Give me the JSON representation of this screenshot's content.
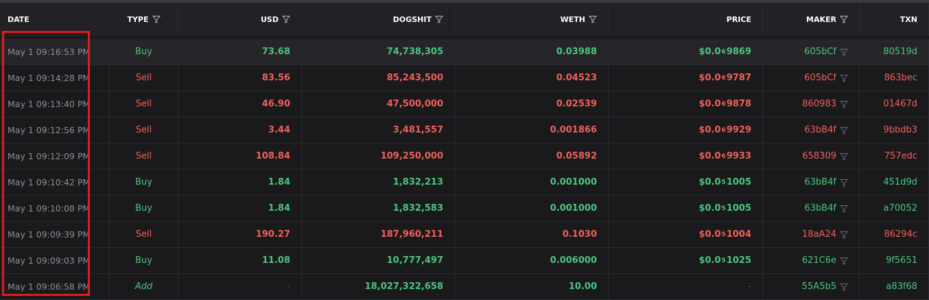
{
  "header": [
    {
      "label": "DATE",
      "filter": false
    },
    {
      "label": "TYPE",
      "filter": true
    },
    {
      "label": "USD",
      "filter": true
    },
    {
      "label": "DOGSHIT",
      "filter": true
    },
    {
      "label": "WETH",
      "filter": true
    },
    {
      "label": "PRICE",
      "filter": false
    },
    {
      "label": "MAKER",
      "filter": true
    },
    {
      "label": "TXN",
      "filter": false
    }
  ],
  "rows": [
    {
      "date": "May 1 09:16:53 PM",
      "type": "Buy",
      "usd": "73.68",
      "tokens": "74,738,305",
      "weth": "0.03988",
      "price": {
        "prefix": "$0.0",
        "zeros": "6",
        "digits": "9869"
      },
      "maker": "605bCf",
      "txn": "80519d",
      "color": "#4cc57e"
    },
    {
      "date": "May 1 09:14:28 PM",
      "type": "Sell",
      "usd": "83.56",
      "tokens": "85,243,500",
      "weth": "0.04523",
      "price": {
        "prefix": "$0.0",
        "zeros": "6",
        "digits": "9787"
      },
      "maker": "605bCf",
      "txn": "863bec",
      "color": "#f0605a"
    },
    {
      "date": "May 1 09:13:40 PM",
      "type": "Sell",
      "usd": "46.90",
      "tokens": "47,500,000",
      "weth": "0.02539",
      "price": {
        "prefix": "$0.0",
        "zeros": "6",
        "digits": "9878"
      },
      "maker": "860983",
      "txn": "01467d",
      "color": "#f0605a"
    },
    {
      "date": "May 1 09:12:56 PM",
      "type": "Sell",
      "usd": "3.44",
      "tokens": "3,481,557",
      "weth": "0.001866",
      "price": {
        "prefix": "$0.0",
        "zeros": "6",
        "digits": "9929"
      },
      "maker": "63bB4f",
      "txn": "9bbdb3",
      "color": "#f0605a"
    },
    {
      "date": "May 1 09:12:09 PM",
      "type": "Sell",
      "usd": "108.84",
      "tokens": "109,250,000",
      "weth": "0.05892",
      "price": {
        "prefix": "$0.0",
        "zeros": "6",
        "digits": "9933"
      },
      "maker": "658309",
      "txn": "757edc",
      "color": "#f0605a"
    },
    {
      "date": "May 1 09:10:42 PM",
      "type": "Buy",
      "usd": "1.84",
      "tokens": "1,832,213",
      "weth": "0.001000",
      "price": {
        "prefix": "$0.0",
        "zeros": "5",
        "digits": "1005"
      },
      "maker": "63bB4f",
      "txn": "451d9d",
      "color": "#4cc57e"
    },
    {
      "date": "May 1 09:10:08 PM",
      "type": "Buy",
      "usd": "1.84",
      "tokens": "1,832,583",
      "weth": "0.001000",
      "price": {
        "prefix": "$0.0",
        "zeros": "5",
        "digits": "1005"
      },
      "maker": "63bB4f",
      "txn": "a70052",
      "color": "#4cc57e"
    },
    {
      "date": "May 1 09:09:39 PM",
      "type": "Sell",
      "usd": "190.27",
      "tokens": "187,960,211",
      "weth": "0.1030",
      "price": {
        "prefix": "$0.0",
        "zeros": "5",
        "digits": "1004"
      },
      "maker": "18aA24",
      "txn": "86294c",
      "color": "#f0605a"
    },
    {
      "date": "May 1 09:09:03 PM",
      "type": "Buy",
      "usd": "11.08",
      "tokens": "10,777,497",
      "weth": "0.006000",
      "price": {
        "prefix": "$0.0",
        "zeros": "5",
        "digits": "1025"
      },
      "maker": "621C6e",
      "txn": "9f5651",
      "color": "#4cc57e"
    },
    {
      "date": "May 1 09:06:58 PM",
      "type": "Add",
      "usd": "-",
      "tokens": "18,027,322,658",
      "weth": "10.00",
      "price": "-",
      "maker": "55A5b5",
      "txn": "a83f68",
      "color": "#4cc57e"
    }
  ]
}
